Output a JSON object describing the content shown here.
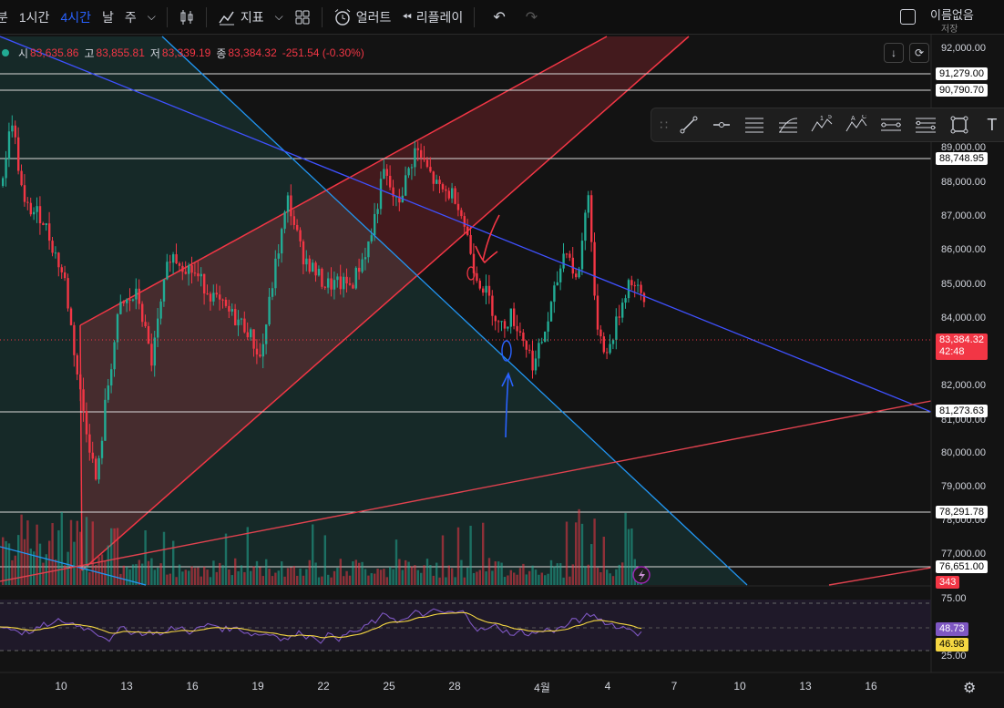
{
  "toolbar": {
    "intervals": [
      "분",
      "1시간",
      "4시간"
    ],
    "range_labels": [
      "날",
      "주"
    ],
    "indicators_label": "지표",
    "alerts_label": "얼러트",
    "replay_label": "리플레이",
    "layout_name": "이름없음",
    "save_label": "저장"
  },
  "legend": {
    "open_label": "시",
    "open": "83,635.86",
    "high_label": "고",
    "high": "83,855.81",
    "low_label": "저",
    "low": "83,339.19",
    "close_label": "종",
    "close": "83,384.32",
    "change": "-251.54 (-0.30%)"
  },
  "price_axis": {
    "ticks": [
      "92,000.00",
      "89,000.00",
      "88,000.00",
      "87,000.00",
      "86,000.00",
      "85,000.00",
      "84,000.00",
      "82,000.00",
      "81,000.00",
      "80,000.00",
      "79,000.00",
      "78,000.00",
      "77,000.00"
    ],
    "level_tags": [
      "91,279.00",
      "90,790.70",
      "88,748.95",
      "81,273.63",
      "78,291.78",
      "76,651.00"
    ],
    "current_price": "83,384.32",
    "countdown": "42:48",
    "volume_tag": "343"
  },
  "rsi": {
    "upper": "75.00",
    "lower": "25.00",
    "value": "48.73",
    "ma_value": "46.98",
    "line_color": "#7e57c2",
    "ma_color": "#f5d742"
  },
  "time_axis": [
    "10",
    "13",
    "16",
    "19",
    "22",
    "25",
    "28",
    "4월",
    "4",
    "7",
    "10",
    "13",
    "16"
  ],
  "colors": {
    "up": "#22ab94",
    "down": "#f23645",
    "accent": "#2962ff"
  },
  "icons": [
    "candles-icon",
    "indicators-icon",
    "layout-icon",
    "alert-icon",
    "replay-icon",
    "undo-icon",
    "redo-icon",
    "chevron-down-icon",
    "checkbox-icon",
    "download-icon",
    "refresh-icon",
    "lightning-icon",
    "settings-icon"
  ]
}
